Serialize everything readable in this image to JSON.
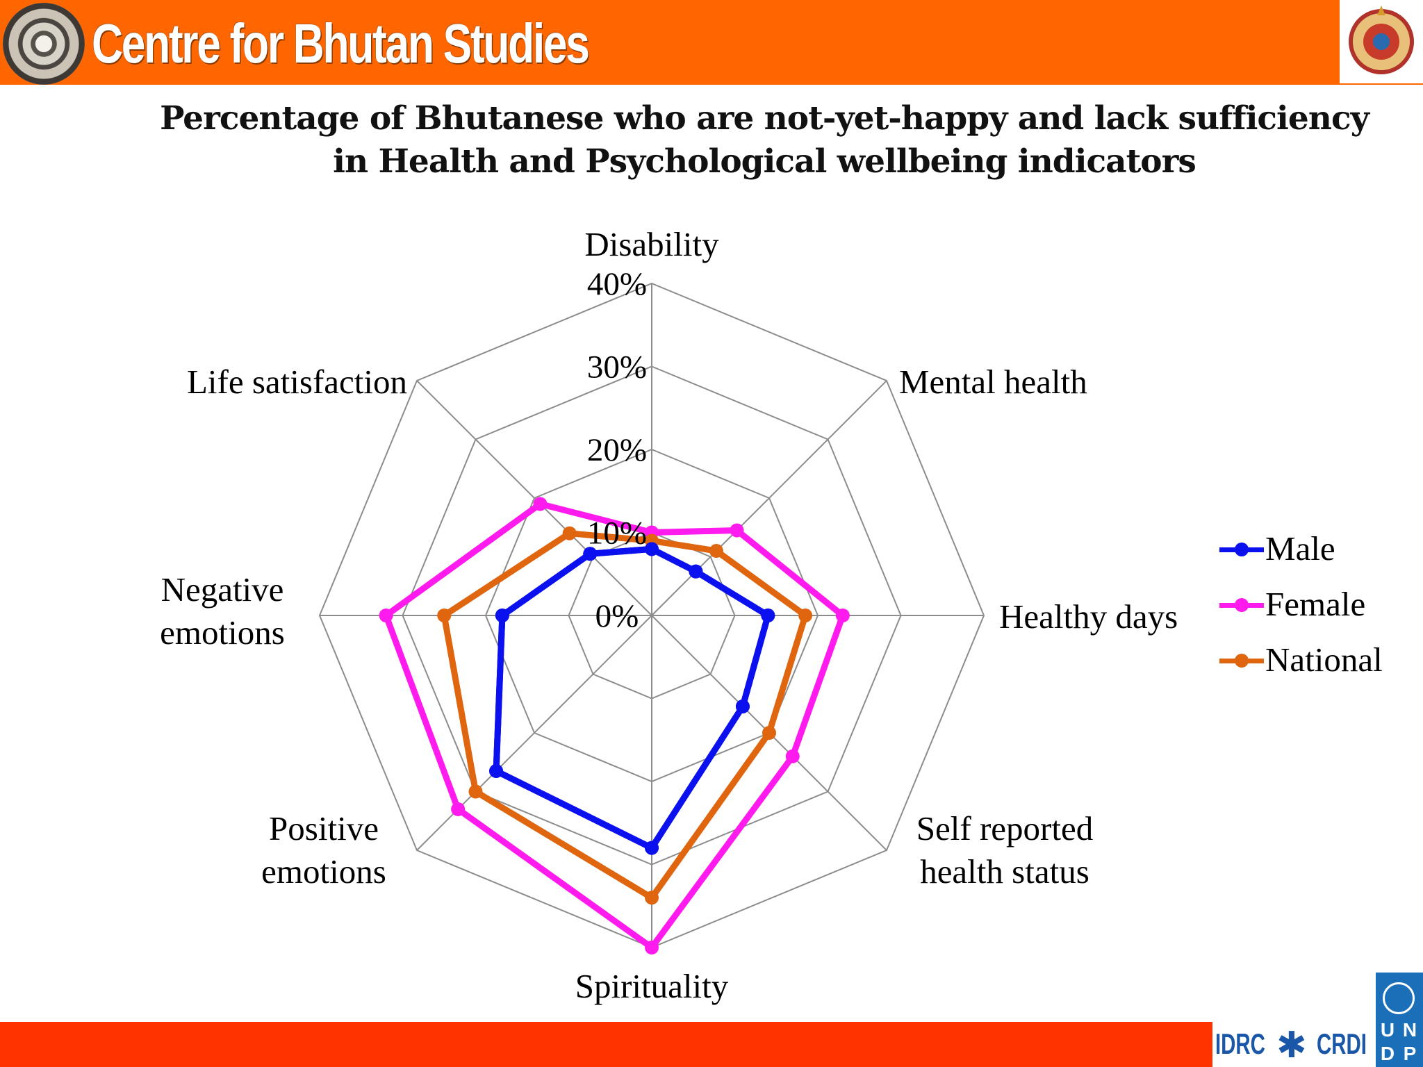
{
  "header": {
    "title": "Centre for Bhutan Studies",
    "logo_icon": "dharma-wheel-icon",
    "emblem_icon": "bhutan-emblem-icon",
    "color": "#ff6600"
  },
  "footer": {
    "idrc_left": "IDRC",
    "idrc_right": "CRDI",
    "undp_letters": [
      "U",
      "N",
      "D",
      "P"
    ],
    "color": "#ff3300"
  },
  "chart_data": {
    "type": "radar",
    "title_lines": [
      "Percentage of Bhutanese who are not-yet-happy and lack sufficiency",
      "in Health and Psychological wellbeing indicators"
    ],
    "categories": [
      [
        "Disability"
      ],
      [
        "Mental health"
      ],
      [
        "Healthy days"
      ],
      [
        "Self reported",
        "health status"
      ],
      [
        "Spirituality"
      ],
      [
        "Positive",
        "emotions"
      ],
      [
        "Negative",
        "emotions"
      ],
      [
        "Life satisfaction"
      ]
    ],
    "range": [
      0,
      40
    ],
    "ticks": [
      {
        "value": 0,
        "label": "0%"
      },
      {
        "value": 10,
        "label": "10%"
      },
      {
        "value": 20,
        "label": "20%"
      },
      {
        "value": 30,
        "label": "30%"
      },
      {
        "value": 40,
        "label": "40%"
      }
    ],
    "series": [
      {
        "name": "Male",
        "color": "#0a10ee",
        "values": [
          8,
          7.5,
          14,
          15.5,
          28,
          26.5,
          18,
          10.5
        ]
      },
      {
        "name": "Female",
        "color": "#ff1aee",
        "values": [
          10,
          14.5,
          23,
          24,
          40,
          33,
          32,
          19
        ]
      },
      {
        "name": "National",
        "color": "#e0650f",
        "values": [
          9,
          11,
          18.5,
          20,
          34,
          30,
          25,
          14
        ]
      }
    ],
    "grid": true,
    "legend_position": "right"
  }
}
